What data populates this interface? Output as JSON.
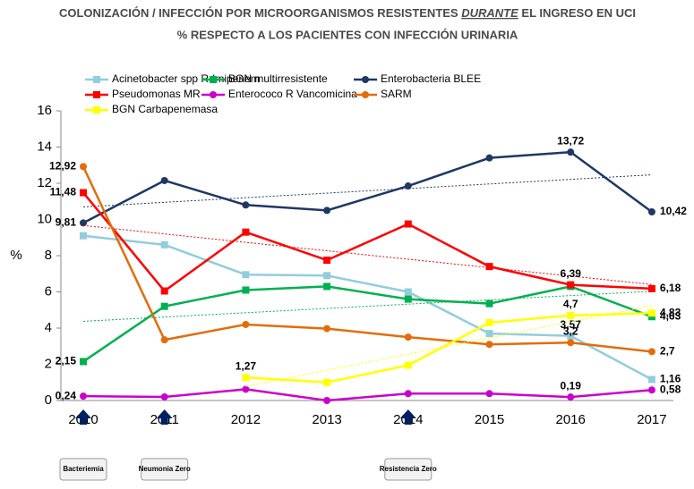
{
  "chart_data": {
    "type": "line",
    "title": [
      "COLONIZACIÓN / INFECCIÓN POR MICROORGANISMOS RESISTENTES ",
      "DURANTE",
      " EL INGRESO EN UCI"
    ],
    "subtitle": "% RESPECTO A LOS PACIENTES CON INFECCIÓN URINARIA",
    "y_label": "%",
    "categories": [
      "2010",
      "2011",
      "2012",
      "2013",
      "2014",
      "2015",
      "2016",
      "2017"
    ],
    "ylim": [
      0,
      16
    ],
    "yticks": [
      0,
      2,
      4,
      6,
      8,
      10,
      12,
      14,
      16
    ],
    "series": [
      {
        "name": "Acinetobacter spp R-Imipenem",
        "color": "#92cddc",
        "marker": "square",
        "values": [
          9.1,
          8.6,
          6.95,
          6.9,
          6.0,
          3.7,
          3.57,
          1.16
        ],
        "value_labels": [
          null,
          null,
          null,
          null,
          null,
          null,
          "3,57",
          "1,16"
        ]
      },
      {
        "name": "BGN multirresistente",
        "color": "#00b050",
        "marker": "square",
        "trendline": true,
        "values": [
          2.15,
          5.2,
          6.1,
          6.3,
          5.6,
          5.35,
          6.3,
          4.63
        ],
        "value_labels": [
          "2,15",
          null,
          null,
          null,
          null,
          null,
          null,
          "4,63"
        ]
      },
      {
        "name": "Enterobacteria BLEE",
        "color": "#1f3864",
        "marker": "circle",
        "trendline": true,
        "values": [
          9.81,
          12.15,
          10.8,
          10.5,
          11.85,
          13.4,
          13.72,
          10.42
        ],
        "value_labels": [
          "9,81",
          null,
          null,
          null,
          null,
          null,
          "13,72",
          "10,42"
        ]
      },
      {
        "name": "Pseudomonas MR",
        "color": "#ff0000",
        "marker": "square",
        "trendline": true,
        "values": [
          11.48,
          6.05,
          9.3,
          7.75,
          9.75,
          7.4,
          6.39,
          6.18
        ],
        "value_labels": [
          "11,48",
          null,
          null,
          null,
          null,
          null,
          "6,39",
          "6,18"
        ]
      },
      {
        "name": "Enterococo R Vancomicina",
        "color": "#cc00cc",
        "marker": "circle",
        "values": [
          0.24,
          0.2,
          0.62,
          0.0,
          0.38,
          0.38,
          0.19,
          0.58
        ],
        "value_labels": [
          "0,24",
          null,
          null,
          null,
          null,
          null,
          "0,19",
          "0,58"
        ]
      },
      {
        "name": "SARM",
        "color": "#e46c0a",
        "marker": "circle",
        "values": [
          12.92,
          3.35,
          4.2,
          3.97,
          3.5,
          3.1,
          3.2,
          2.7
        ],
        "value_labels": [
          "12,92",
          null,
          null,
          null,
          null,
          null,
          "3,2",
          "2,7"
        ]
      },
      {
        "name": "BGN Carbapenemasa",
        "color": "#ffff00",
        "marker": "square",
        "trendline": true,
        "values": [
          null,
          null,
          1.27,
          1.0,
          1.95,
          4.3,
          4.7,
          4.83
        ],
        "value_labels": [
          null,
          null,
          "1,27",
          null,
          null,
          null,
          "4,7",
          "4,83"
        ]
      }
    ],
    "markers": [
      {
        "x": "2010",
        "label": "Bacteriemia"
      },
      {
        "x": "2011",
        "label": "Neumonia Zero"
      },
      {
        "x": "2014",
        "label": "Resistencia Zero"
      }
    ]
  }
}
